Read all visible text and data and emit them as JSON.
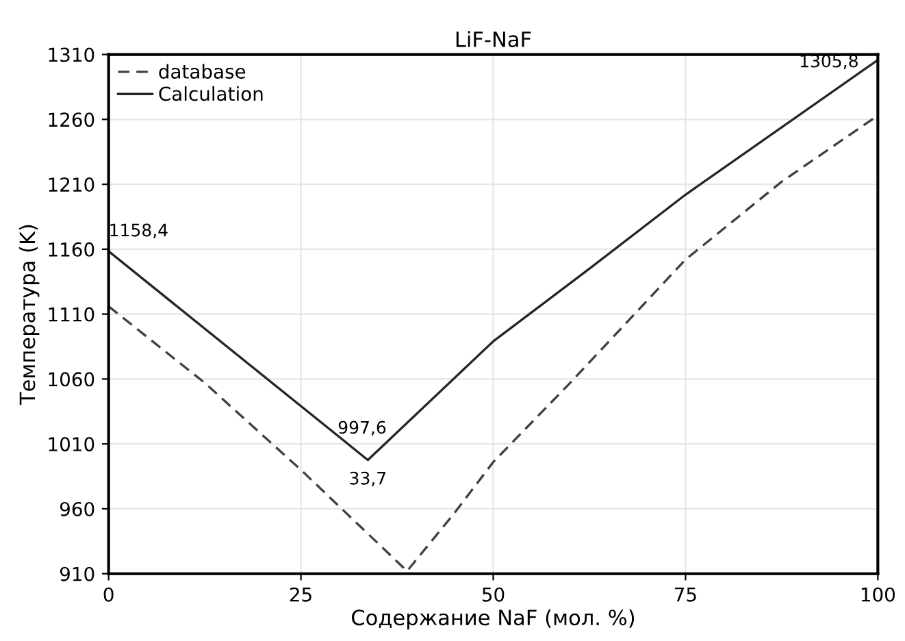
{
  "chart_data": {
    "type": "line",
    "title": "LiF-NaF",
    "xlabel": "Содержание NaF (мол. %)",
    "ylabel": "Температура (K)",
    "xlim": [
      0,
      100
    ],
    "xticks": [
      0,
      25,
      50,
      75,
      100
    ],
    "ylim": [
      910,
      1310
    ],
    "yticks": [
      910,
      960,
      1010,
      1060,
      1110,
      1160,
      1210,
      1260,
      1310
    ],
    "grid": true,
    "legend": "top left",
    "series": [
      {
        "name": "database",
        "color": "#404040",
        "line_style": "dashed",
        "x": [
          0,
          12.5,
          25,
          38.8,
          45,
          50,
          60,
          75,
          87.5,
          100
        ],
        "values": [
          1116,
          1057,
          990,
          912,
          957,
          996,
          1057,
          1152,
          1212,
          1263
        ]
      },
      {
        "name": "Calculation",
        "color": "#262626",
        "line_style": "solid",
        "x": [
          0,
          33.7,
          50,
          62.5,
          75,
          100
        ],
        "values": [
          1158.4,
          997.6,
          1089,
          1145,
          1202,
          1305.8
        ]
      }
    ],
    "annotations": [
      {
        "text": "1158,4",
        "x": 0,
        "y": 1158.4
      },
      {
        "text": "997,6",
        "x": 33.7,
        "y": 997.6
      },
      {
        "text": "33,7",
        "x": 33.7,
        "y": 997.6
      },
      {
        "text": "1305,8",
        "x": 100,
        "y": 1305.8
      }
    ]
  }
}
